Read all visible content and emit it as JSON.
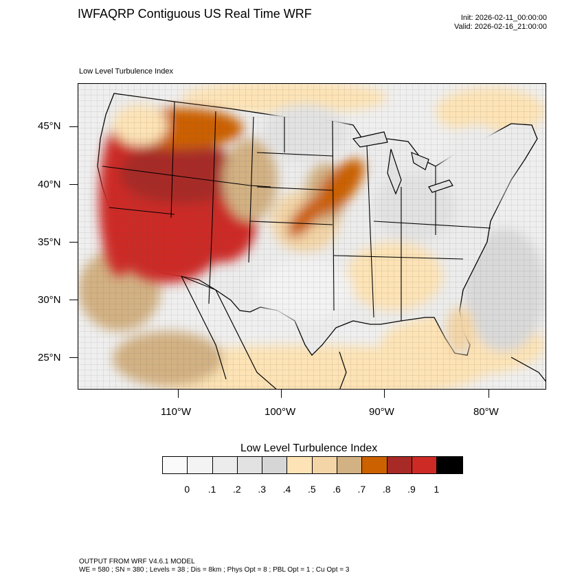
{
  "header": {
    "title": "IWFAQRP Contiguous US Real Time WRF",
    "init": "Init: 2026-02-11_00:00:00",
    "valid": "Valid: 2026-02-16_21:00:00"
  },
  "map": {
    "subtitle": "Low Level Turbulence Index",
    "lat_labels": [
      "45°N",
      "40°N",
      "35°N",
      "30°N",
      "25°N"
    ],
    "lon_labels": [
      "110°W",
      "100°W",
      "90°W",
      "80°W"
    ]
  },
  "colorbar": {
    "title": "Low Level Turbulence Index",
    "labels": [
      "0",
      ".1",
      ".2",
      ".3",
      ".4",
      ".5",
      ".6",
      ".7",
      ".8",
      ".9",
      "1"
    ],
    "colors": [
      "#fafafa",
      "#f3f3f3",
      "#ececec",
      "#e2e2e2",
      "#d6d6d6",
      "#fde3b5",
      "#f3d5a7",
      "#d2b183",
      "#cc6100",
      "#a82a26",
      "#cd2a26",
      "#000000"
    ]
  },
  "footer": {
    "line1": "OUTPUT FROM WRF V4.6.1 MODEL",
    "line2": "WE = 580 ; SN = 380 ; Levels = 38 ; Dis = 8km ; Phys Opt = 8 ; PBL Opt = 1 ; Cu Opt = 3"
  }
}
